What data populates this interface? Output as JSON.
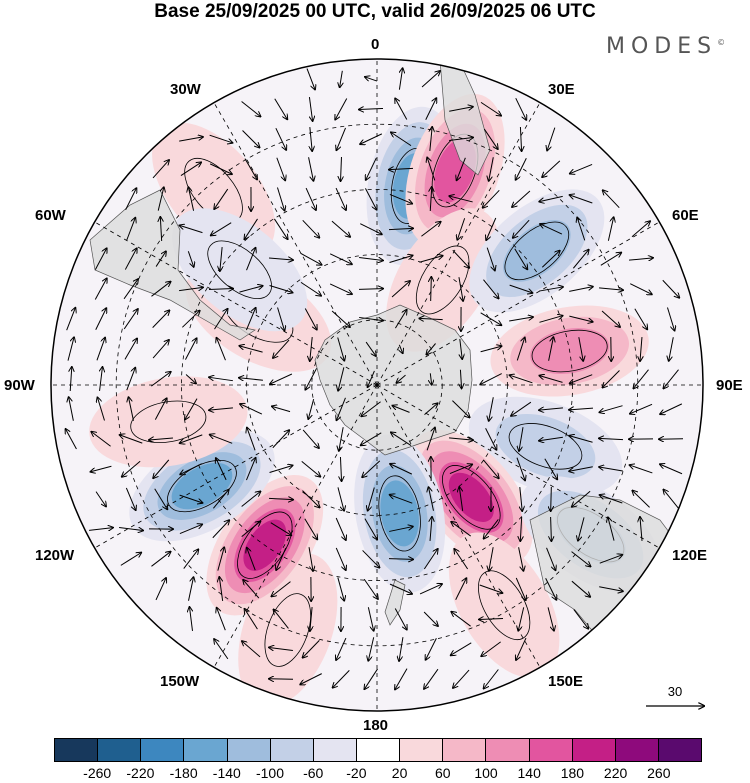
{
  "title": "Base 25/09/2025 00 UTC, valid 26/09/2025 06 UTC",
  "brand": "MODES",
  "brand_mark": "©",
  "longitude_labels": {
    "lon_0": "0",
    "lon_30e": "30E",
    "lon_60e": "60E",
    "lon_90e": "90E",
    "lon_120e": "120E",
    "lon_150e": "150E",
    "lon_180": "180",
    "lon_150w": "150W",
    "lon_120w": "120W",
    "lon_90w": "90W",
    "lon_60w": "60W",
    "lon_30w": "30W"
  },
  "reference_vector": {
    "label": "30"
  },
  "colorbar": {
    "colors": [
      "#17385c",
      "#1f5f8f",
      "#3d87bf",
      "#6aa6d1",
      "#9fbddd",
      "#c3d0e7",
      "#e4e4f1",
      "#ffffff",
      "#f9d9dc",
      "#f5b8c8",
      "#ee8db4",
      "#e2559f",
      "#c41f86",
      "#8e0a7c",
      "#5a0a6e"
    ],
    "ticks": [
      "-260",
      "-220",
      "-180",
      "-140",
      "-100",
      "-60",
      "-20",
      "20",
      "60",
      "100",
      "140",
      "180",
      "220",
      "260"
    ]
  },
  "anomaly_centers": [
    {
      "lon": 10,
      "r": 0.62,
      "value": -180
    },
    {
      "lon": 20,
      "r": 0.7,
      "value": 180
    },
    {
      "lon": 32,
      "r": 0.38,
      "value": 60
    },
    {
      "lon": 50,
      "r": 0.64,
      "value": -140
    },
    {
      "lon": 80,
      "r": 0.6,
      "value": 140
    },
    {
      "lon": 110,
      "r": 0.55,
      "value": -100
    },
    {
      "lon": 140,
      "r": 0.45,
      "value": 220
    },
    {
      "lon": 170,
      "r": 0.4,
      "value": -180
    },
    {
      "lon": 125,
      "r": 0.8,
      "value": -140
    },
    {
      "lon": 150,
      "r": 0.78,
      "value": 60
    },
    {
      "lon": 200,
      "r": 0.8,
      "value": 60
    },
    {
      "lon": 215,
      "r": 0.6,
      "value": 200
    },
    {
      "lon": 240,
      "r": 0.62,
      "value": -180
    },
    {
      "lon": 260,
      "r": 0.65,
      "value": 60
    },
    {
      "lon": 300,
      "r": 0.42,
      "value": 60
    },
    {
      "lon": 320,
      "r": 0.78,
      "value": 40
    },
    {
      "lon": 310,
      "r": 0.55,
      "value": -40
    }
  ]
}
